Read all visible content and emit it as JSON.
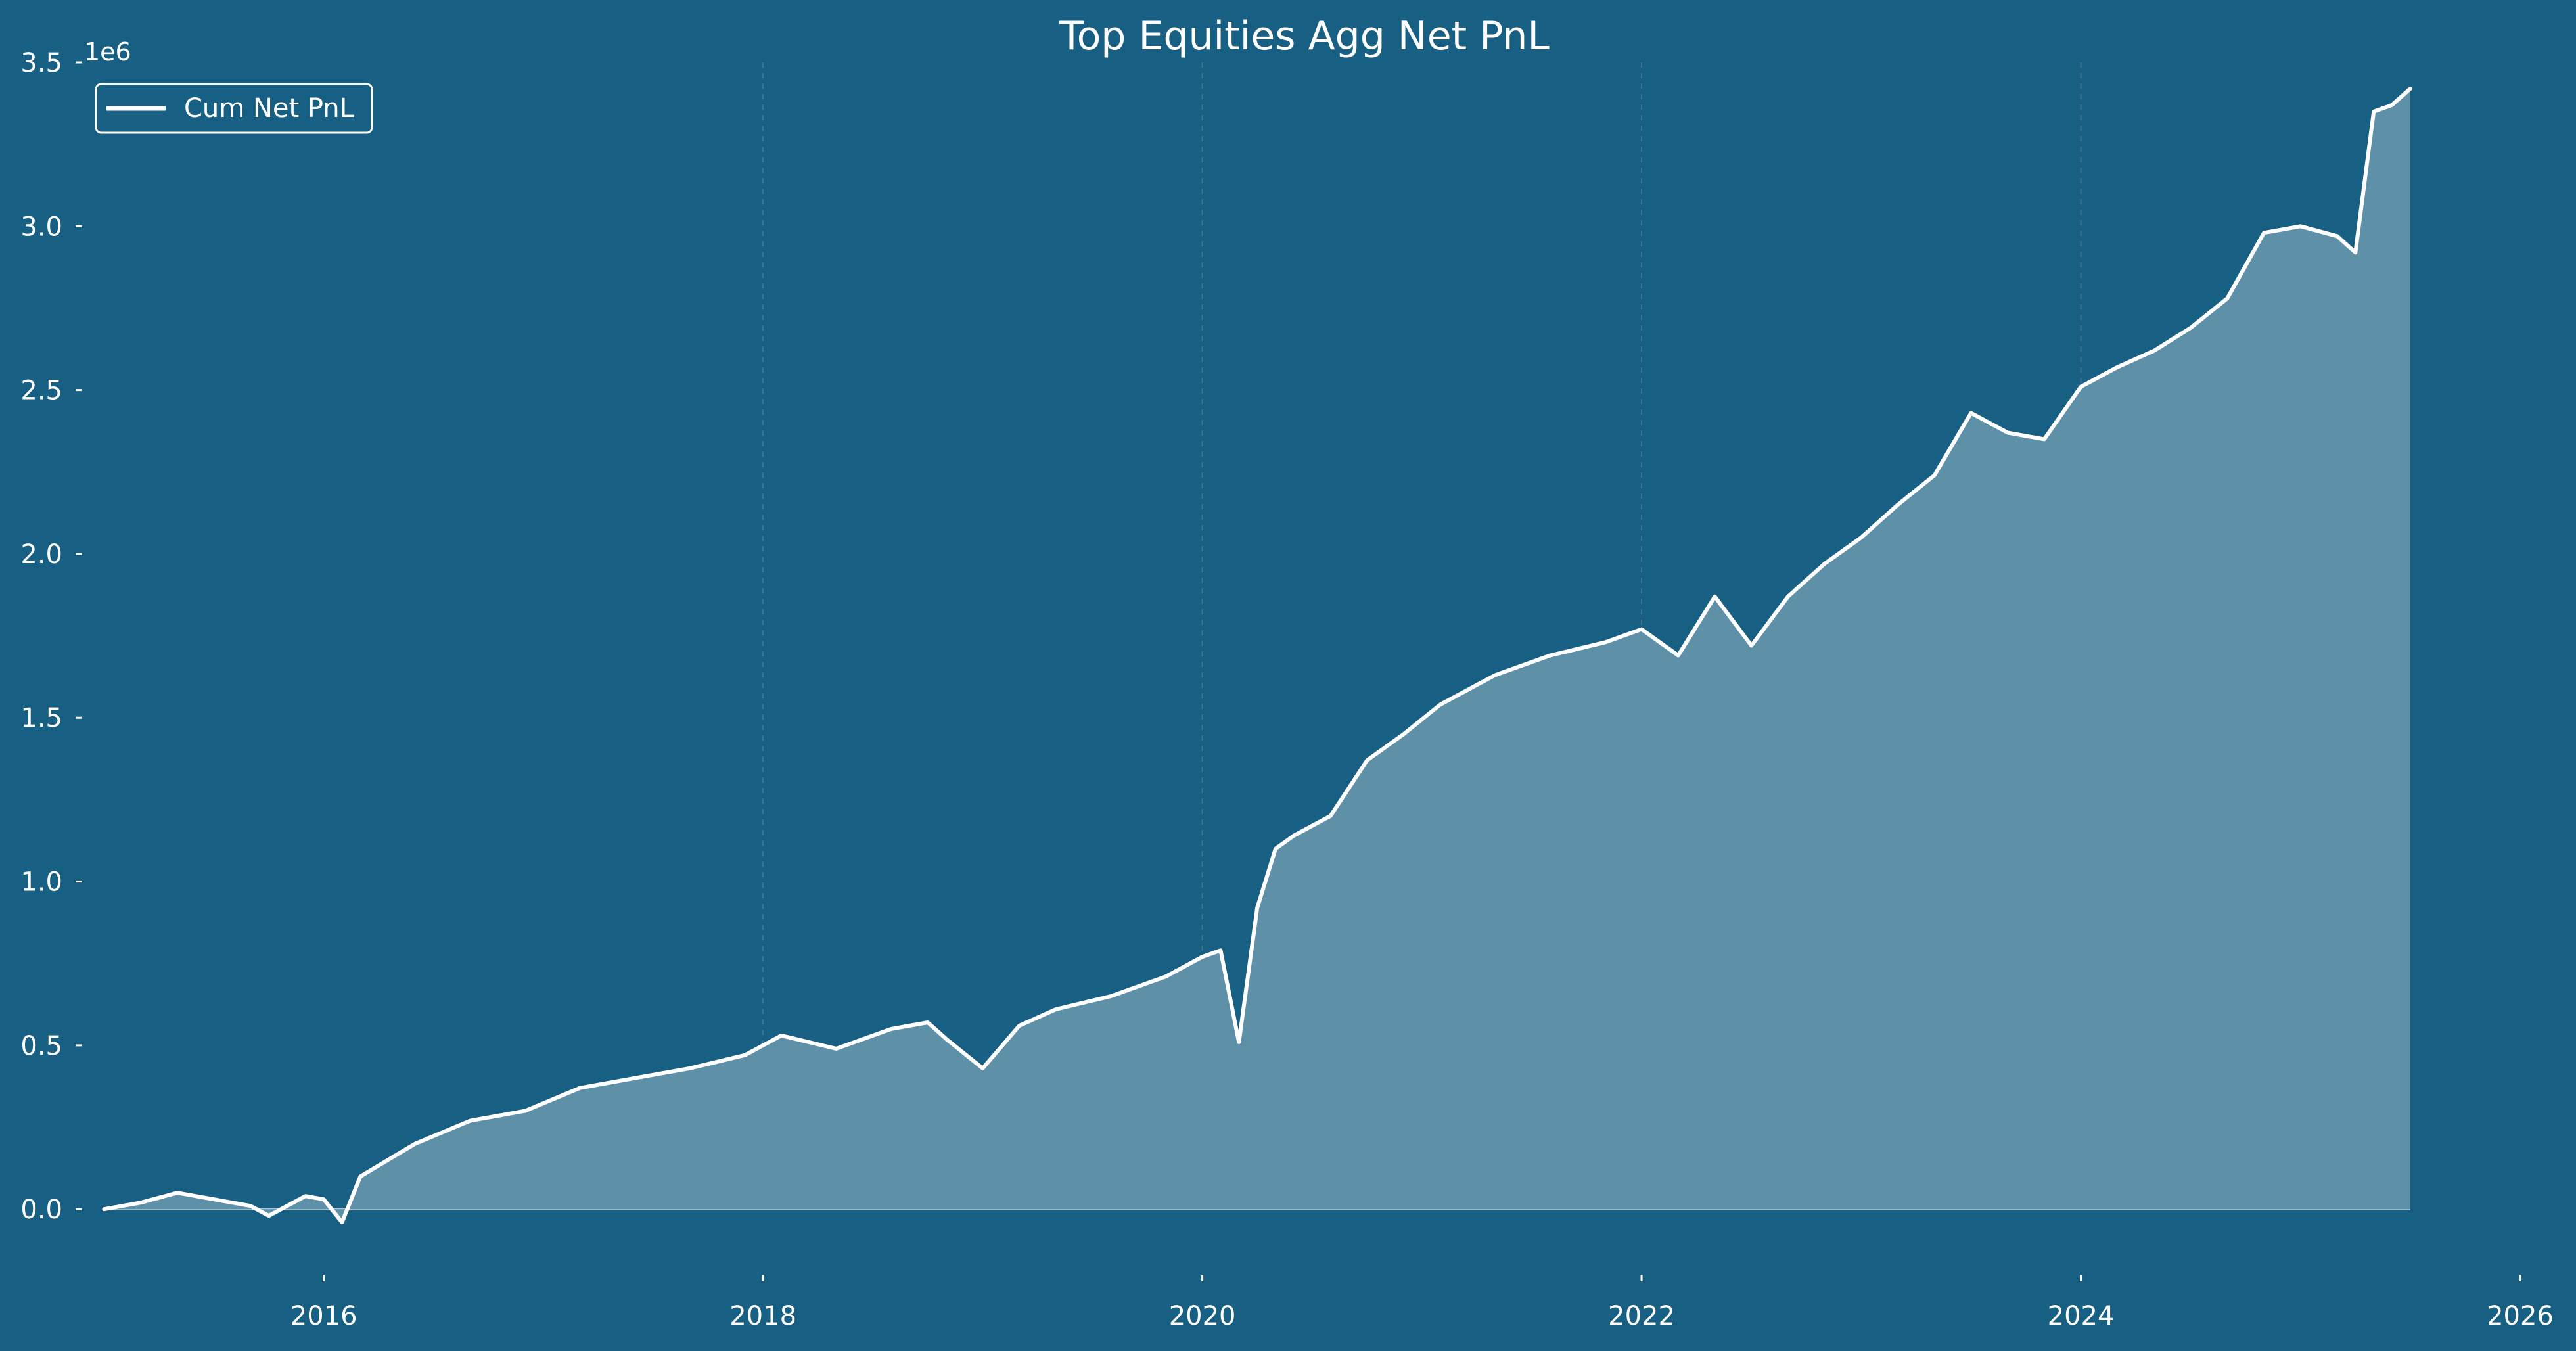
{
  "chart_data": {
    "type": "area",
    "title": "Top Equities Agg Net PnL",
    "xlabel": "",
    "ylabel": "",
    "y_multiplier_label": "1e6",
    "xlim": [
      2014.9,
      2026.0
    ],
    "ylim": [
      -0.13,
      3.5
    ],
    "x_ticks": [
      2016,
      2018,
      2020,
      2022,
      2024,
      2026
    ],
    "x_tick_labels": [
      "2016",
      "2018",
      "2020",
      "2022",
      "2024",
      "2026"
    ],
    "y_ticks": [
      0.0,
      0.5,
      1.0,
      1.5,
      2.0,
      2.5,
      3.0,
      3.5
    ],
    "y_tick_labels": [
      "0.0",
      "0.5",
      "1.0",
      "1.5",
      "2.0",
      "2.5",
      "3.0",
      "3.5"
    ],
    "grid": "vertical dashed lines at 2018, 2020, 2022, 2024",
    "legend": {
      "position": "top-left",
      "entries": [
        "Cum Net PnL"
      ]
    },
    "colors": {
      "background": "#175f83",
      "line": "#ffffff",
      "fill": "#5e90a8",
      "grid": "#3f7591"
    },
    "series": [
      {
        "name": "Cum Net PnL",
        "x": [
          "2015-01",
          "2015-03",
          "2015-05",
          "2015-07",
          "2015-09",
          "2015-10",
          "2015-12",
          "2016-01",
          "2016-02",
          "2016-03",
          "2016-06",
          "2016-09",
          "2016-12",
          "2017-03",
          "2017-06",
          "2017-09",
          "2017-12",
          "2018-01",
          "2018-02",
          "2018-05",
          "2018-08",
          "2018-10",
          "2018-11",
          "2019-01",
          "2019-03",
          "2019-05",
          "2019-08",
          "2019-11",
          "2020-01",
          "2020-02",
          "2020-03",
          "2020-04",
          "2020-05",
          "2020-06",
          "2020-08",
          "2020-10",
          "2020-12",
          "2021-02",
          "2021-05",
          "2021-08",
          "2021-11",
          "2022-01",
          "2022-03",
          "2022-05",
          "2022-07",
          "2022-09",
          "2022-11",
          "2023-01",
          "2023-03",
          "2023-05",
          "2023-07",
          "2023-09",
          "2023-11",
          "2024-01",
          "2024-03",
          "2024-05",
          "2024-07",
          "2024-09",
          "2024-11",
          "2025-01",
          "2025-03",
          "2025-04",
          "2025-05",
          "2025-06",
          "2025-07"
        ],
        "y": [
          0.0,
          0.02,
          0.05,
          0.03,
          0.01,
          -0.02,
          0.04,
          0.03,
          -0.04,
          0.1,
          0.2,
          0.27,
          0.3,
          0.37,
          0.4,
          0.43,
          0.47,
          0.5,
          0.53,
          0.49,
          0.55,
          0.57,
          0.52,
          0.43,
          0.56,
          0.61,
          0.65,
          0.71,
          0.77,
          0.79,
          0.51,
          0.92,
          1.1,
          1.14,
          1.2,
          1.37,
          1.45,
          1.54,
          1.63,
          1.69,
          1.73,
          1.77,
          1.69,
          1.87,
          1.72,
          1.87,
          1.97,
          2.05,
          2.15,
          2.24,
          2.43,
          2.37,
          2.35,
          2.51,
          2.57,
          2.62,
          2.69,
          2.78,
          2.98,
          3.0,
          2.97,
          2.92,
          3.35,
          3.37,
          3.42
        ]
      }
    ]
  }
}
